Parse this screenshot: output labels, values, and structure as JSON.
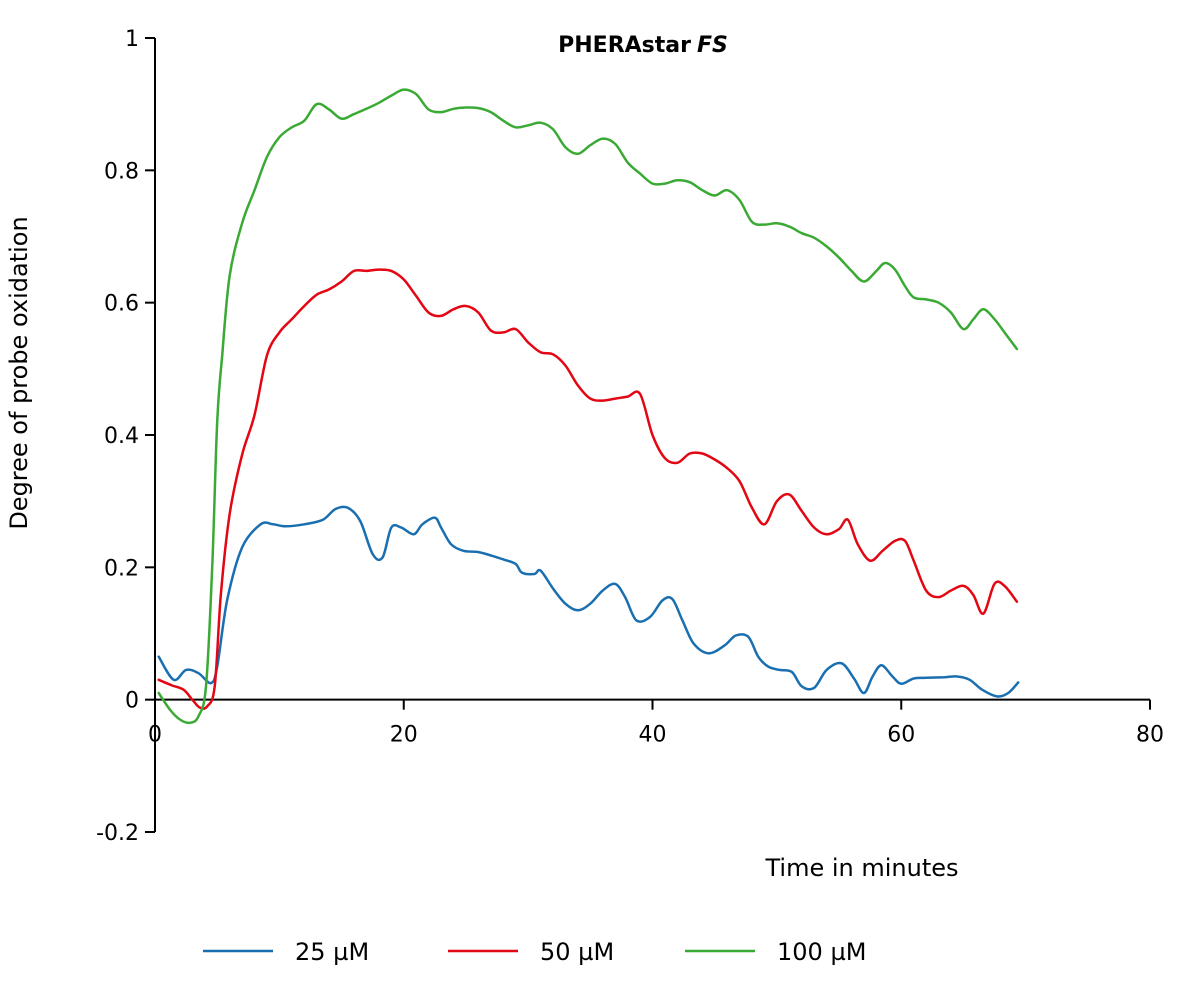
{
  "chart_data": {
    "type": "line",
    "title": "PHERAstar",
    "title_italic": "FS",
    "xlabel": "Time in minutes",
    "ylabel": "Degree of probe oxidation",
    "xlim": [
      0,
      80
    ],
    "ylim": [
      -0.2,
      1
    ],
    "x_ticks": [
      0,
      20,
      40,
      60,
      80
    ],
    "y_ticks": [
      -0.2,
      0,
      0.2,
      0.4,
      0.6,
      0.8,
      1
    ],
    "y_tick_labels": [
      "-0.2",
      "0",
      "0.2",
      "0.4",
      "0.6",
      "0.8",
      "1"
    ],
    "x_tick_labels": [
      "0",
      "20",
      "40",
      "60",
      "80"
    ],
    "grid": false,
    "legend_position": "bottom-center",
    "series": [
      {
        "name": "25 µM",
        "color": "#1a6fb0",
        "x": [
          0.3,
          1.5,
          2.5,
          3.5,
          4.5,
          5.0,
          5.8,
          7.0,
          8.5,
          9.5,
          10.5,
          12,
          13.5,
          14.5,
          15.5,
          16.5,
          17.5,
          18.3,
          19,
          19.8,
          20.8,
          21.5,
          22.5,
          23.0,
          23.8,
          24.8,
          26,
          27,
          28,
          29,
          29.5,
          30.5,
          31,
          32,
          33,
          34,
          35,
          36,
          37,
          37.8,
          38.7,
          39.8,
          40.8,
          41.6,
          42.4,
          43.3,
          44.5,
          45.8,
          46.7,
          47.7,
          48.5,
          49.3,
          50.2,
          51.2,
          52.0,
          53.0,
          54.0,
          55.2,
          56.2,
          57.0,
          57.7,
          58.4,
          59.3,
          60.0,
          61.0,
          62.0,
          63.5,
          64.5,
          65.5,
          66.5,
          67.7,
          68.6,
          69.4
        ],
        "y": [
          0.065,
          0.03,
          0.045,
          0.04,
          0.025,
          0.05,
          0.15,
          0.23,
          0.265,
          0.265,
          0.262,
          0.265,
          0.272,
          0.288,
          0.29,
          0.27,
          0.22,
          0.215,
          0.26,
          0.26,
          0.25,
          0.265,
          0.275,
          0.26,
          0.235,
          0.225,
          0.223,
          0.218,
          0.212,
          0.205,
          0.192,
          0.19,
          0.195,
          0.168,
          0.145,
          0.135,
          0.145,
          0.165,
          0.175,
          0.155,
          0.12,
          0.125,
          0.15,
          0.152,
          0.12,
          0.085,
          0.07,
          0.082,
          0.097,
          0.095,
          0.065,
          0.05,
          0.045,
          0.042,
          0.02,
          0.018,
          0.045,
          0.055,
          0.032,
          0.01,
          0.035,
          0.052,
          0.035,
          0.024,
          0.032,
          0.033,
          0.034,
          0.035,
          0.03,
          0.015,
          0.005,
          0.01,
          0.026
        ]
      },
      {
        "name": "50 µM",
        "color": "#e30613",
        "x": [
          0.3,
          1.3,
          2.3,
          3.0,
          3.6,
          4.2,
          4.8,
          5.3,
          6.0,
          7.0,
          8.0,
          9.0,
          10.0,
          11.0,
          12.0,
          13.0,
          14.0,
          15.0,
          16.0,
          17.0,
          18.0,
          19.0,
          20.0,
          21.0,
          22.0,
          23.0,
          24.0,
          25.0,
          26.0,
          27.0,
          28.0,
          29.0,
          30.0,
          31.0,
          32.0,
          33.0,
          34.0,
          35.0,
          36.0,
          37.0,
          38.0,
          39.0,
          40.0,
          41.0,
          42.0,
          43.0,
          44.0,
          45.0,
          46.0,
          47.0,
          48.0,
          49.0,
          50.0,
          51.0,
          52.0,
          53.0,
          54.0,
          55.0,
          55.7,
          56.5,
          57.5,
          58.5,
          59.5,
          60.3,
          61.0,
          62.0,
          63.0,
          64.0,
          65.0,
          65.8,
          66.6,
          67.5,
          68.3,
          69.3
        ],
        "y": [
          0.03,
          0.022,
          0.015,
          0.0,
          -0.012,
          -0.01,
          0.02,
          0.16,
          0.28,
          0.37,
          0.43,
          0.52,
          0.555,
          0.575,
          0.595,
          0.612,
          0.62,
          0.632,
          0.648,
          0.648,
          0.65,
          0.648,
          0.635,
          0.61,
          0.585,
          0.58,
          0.59,
          0.595,
          0.585,
          0.558,
          0.555,
          0.56,
          0.54,
          0.525,
          0.522,
          0.505,
          0.475,
          0.455,
          0.452,
          0.455,
          0.458,
          0.462,
          0.4,
          0.365,
          0.358,
          0.372,
          0.372,
          0.363,
          0.35,
          0.33,
          0.29,
          0.265,
          0.3,
          0.31,
          0.285,
          0.26,
          0.25,
          0.258,
          0.272,
          0.235,
          0.21,
          0.225,
          0.24,
          0.24,
          0.21,
          0.165,
          0.155,
          0.165,
          0.172,
          0.158,
          0.13,
          0.175,
          0.172,
          0.148
        ]
      },
      {
        "name": "100 µM",
        "color": "#3aaa35",
        "x": [
          0.3,
          1.2,
          2.0,
          2.8,
          3.5,
          4.1,
          4.6,
          5.0,
          5.4,
          6.0,
          7.0,
          8.0,
          9.0,
          10.0,
          11.0,
          12.0,
          13.0,
          14.0,
          15.0,
          16.0,
          17.0,
          18.0,
          19.0,
          20.0,
          21.0,
          22.0,
          23.0,
          24.0,
          25.0,
          26.0,
          27.0,
          28.0,
          29.0,
          30.0,
          31.0,
          32.0,
          33.0,
          34.0,
          35.0,
          36.0,
          37.0,
          38.0,
          39.0,
          40.0,
          41.0,
          42.0,
          43.0,
          44.0,
          45.0,
          46.0,
          47.0,
          48.0,
          49.0,
          50.0,
          51.0,
          52.0,
          53.0,
          54.0,
          55.0,
          56.0,
          57.0,
          58.0,
          58.7,
          59.5,
          60.3,
          61.0,
          62.0,
          63.0,
          64.0,
          65.0,
          65.8,
          66.6,
          67.5,
          68.3,
          69.3
        ],
        "y": [
          0.01,
          -0.015,
          -0.03,
          -0.035,
          -0.025,
          0.02,
          0.2,
          0.42,
          0.52,
          0.64,
          0.72,
          0.77,
          0.82,
          0.85,
          0.865,
          0.875,
          0.9,
          0.892,
          0.878,
          0.885,
          0.893,
          0.902,
          0.913,
          0.922,
          0.915,
          0.892,
          0.888,
          0.893,
          0.895,
          0.894,
          0.888,
          0.875,
          0.865,
          0.868,
          0.872,
          0.862,
          0.835,
          0.825,
          0.838,
          0.848,
          0.84,
          0.812,
          0.795,
          0.78,
          0.78,
          0.785,
          0.782,
          0.77,
          0.762,
          0.77,
          0.755,
          0.722,
          0.718,
          0.72,
          0.715,
          0.705,
          0.698,
          0.685,
          0.668,
          0.648,
          0.632,
          0.648,
          0.66,
          0.65,
          0.625,
          0.608,
          0.605,
          0.6,
          0.585,
          0.56,
          0.575,
          0.59,
          0.575,
          0.555,
          0.53
        ]
      }
    ]
  }
}
